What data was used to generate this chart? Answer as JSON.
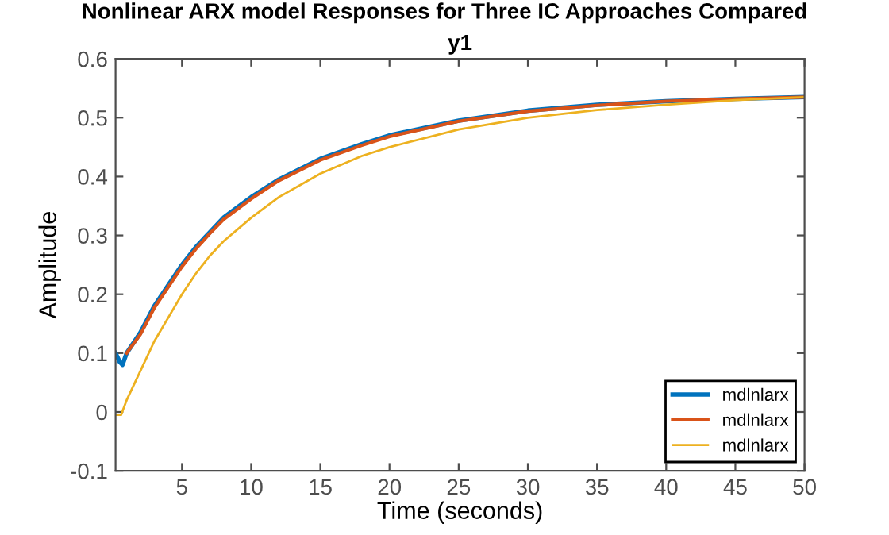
{
  "chart_data": {
    "type": "line",
    "title": "Nonlinear ARX model Responses for Three IC Approaches Compared",
    "subtitle": "y1",
    "xlabel": "Time (seconds)",
    "ylabel": "Amplitude",
    "xlim": [
      0.2,
      50
    ],
    "xticks": [
      5,
      10,
      15,
      20,
      25,
      30,
      35,
      40,
      45,
      50
    ],
    "ylim": [
      -0.1,
      0.6
    ],
    "yticks": [
      -0.1,
      0,
      0.1,
      0.2,
      0.3,
      0.4,
      0.5,
      0.6
    ],
    "grid": false,
    "legend": "bottom right",
    "line_style": "solid",
    "marker": "none",
    "series": [
      {
        "name": "mdlnlarx",
        "color": "#0072bd",
        "x": [
          0.2,
          0.5,
          0.7,
          1,
          2,
          3,
          4,
          5,
          6,
          7,
          8,
          10,
          12,
          15,
          18,
          20,
          25,
          30,
          35,
          40,
          45,
          50
        ],
        "values": [
          0.1,
          0.085,
          0.08,
          0.1,
          0.135,
          0.18,
          0.215,
          0.25,
          0.28,
          0.305,
          0.33,
          0.365,
          0.395,
          0.43,
          0.455,
          0.47,
          0.495,
          0.512,
          0.522,
          0.528,
          0.532,
          0.535
        ]
      },
      {
        "name": "mdlnlarx",
        "color": "#d95319",
        "x": [
          1,
          2,
          3,
          4,
          5,
          6,
          7,
          8,
          10,
          12,
          15,
          18,
          20,
          25,
          30,
          35,
          40,
          45,
          50
        ],
        "values": [
          0.1,
          0.132,
          0.177,
          0.212,
          0.247,
          0.277,
          0.303,
          0.327,
          0.362,
          0.393,
          0.428,
          0.453,
          0.468,
          0.494,
          0.511,
          0.521,
          0.528,
          0.532,
          0.535
        ]
      },
      {
        "name": "mdlnlarx",
        "color": "#edb120",
        "x": [
          0.2,
          0.6,
          1,
          2,
          3,
          4,
          5,
          6,
          7,
          8,
          10,
          12,
          15,
          18,
          20,
          25,
          30,
          35,
          40,
          45,
          50
        ],
        "values": [
          -0.005,
          -0.005,
          0.02,
          0.07,
          0.12,
          0.16,
          0.2,
          0.235,
          0.265,
          0.29,
          0.33,
          0.365,
          0.405,
          0.435,
          0.45,
          0.48,
          0.5,
          0.513,
          0.522,
          0.53,
          0.535
        ]
      }
    ]
  }
}
